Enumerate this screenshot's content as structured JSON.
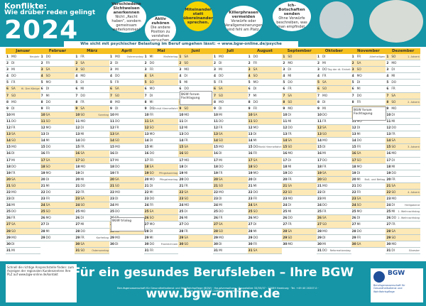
{
  "header": {
    "title_line1": "Konflikte:",
    "title_line2": "Wie drüber reden gelingt",
    "year": "2024",
    "strip": "Wie sicht mit psychischer Belastung im Beruf umgehen lässt: ➔ www.bgw-online.de/psyche"
  },
  "bubbles": [
    {
      "title": "Verschiedene Sichtweisen anerkennen",
      "text": "Nicht „Recht haben“, sondern gemeinsam weiterkommen!"
    },
    {
      "title": "Aktiv zuhören",
      "text": "Die andere Position zu verstehen versuchen."
    },
    {
      "title": "Miteinander statt übereinander sprechen.",
      "text": ""
    },
    {
      "title": "Killerphrasen vermeiden",
      "text": "Vorwürfe oder Verallgemeinerungen sind fehl am Platz."
    },
    {
      "title": "Ich-Botschaften senden",
      "text": "Ohne Vorwürfe beschreiben, was man empfindet."
    }
  ],
  "months": [
    {
      "name": "Januar",
      "start": 1,
      "days": 31
    },
    {
      "name": "Februar",
      "start": 4,
      "days": 29
    },
    {
      "name": "März",
      "start": 5,
      "days": 31
    },
    {
      "name": "April",
      "start": 1,
      "days": 30
    },
    {
      "name": "Mai",
      "start": 3,
      "days": 31
    },
    {
      "name": "Juni",
      "start": 6,
      "days": 30
    },
    {
      "name": "Juli",
      "start": 1,
      "days": 31
    },
    {
      "name": "August",
      "start": 4,
      "days": 31
    },
    {
      "name": "September",
      "start": 0,
      "days": 30
    },
    {
      "name": "Oktober",
      "start": 2,
      "days": 31
    },
    {
      "name": "November",
      "start": 5,
      "days": 30
    },
    {
      "name": "Dezember",
      "start": 0,
      "days": 31
    }
  ],
  "weekdays": [
    "SO",
    "MO",
    "DI",
    "MI",
    "DO",
    "FR",
    "SA"
  ],
  "notes": {
    "0-1": "Neujahr",
    "0-6": "Hl. Drei Könige",
    "2-10": "Sonntag",
    "2-29": "Karfreitag",
    "2-31": "Ostersonntag",
    "3-1": "Ostermontag",
    "4-1": "Maifeiertag",
    "4-9": "Christi Himmelfahrt",
    "4-19": "Pfingstsonntag",
    "4-20": "Pfingstmontag",
    "4-30": "Fronleichnam",
    "7-15": "Mariä Himmelfahrt",
    "9-3": "Tag der dt. Einheit",
    "9-31": "Reformationstag",
    "10-1": "Allerheiligen",
    "10-20": "Buß- und Bettag",
    "11-1": "1. Advent",
    "11-8": "2. Advent",
    "11-15": "3. Advent",
    "11-22": "4. Advent",
    "11-24": "Heiligabend",
    "11-25": "1. Weihnachtstag",
    "11-26": "2. Weihnachtstag",
    "11-31": "Silvester"
  },
  "ads": [
    "BGW forum Fachtagung",
    "BGW forum Fachtagung",
    "BGW trialog"
  ],
  "footer": {
    "claim": "Für ein gesundes Berufsleben – Ihre BGW",
    "url": "www.bgw-online.de",
    "qr_text": "Schnell die richtige Ansprechstelle finden: zum Anzeigen der regionalen Kundenzentren Ihre PLZ auf www.bgw-online.de/kontakt",
    "imprint": "Berufsgenossenschaft für Gesundheitsdienst und Wohlfahrtspflege (BGW) · Hauptverwaltung · Pappelallee 33/35/37 · 22089 Hamburg · Tel. +49 40 20207-0 · Fax +49 40 20207-2495 · www.bgw-online.de",
    "logo": "BGW",
    "logo_sub": "Berufsgenossenschaft für Gesundheitsdienst und Wohlfahrtspflege"
  },
  "colors": {
    "teal": "#1595a6",
    "yellow": "#f5c020",
    "weekend": "#fde9b7"
  }
}
